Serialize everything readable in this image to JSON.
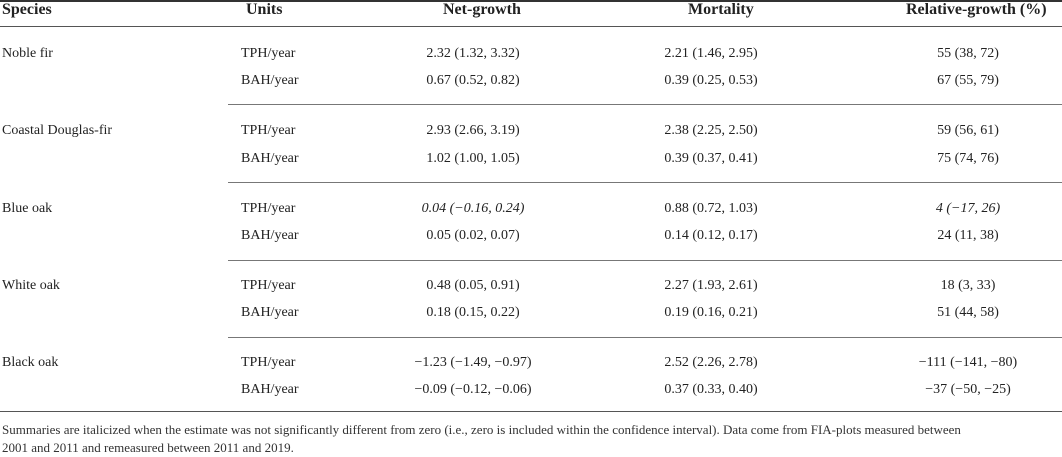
{
  "headers": {
    "species": "Species",
    "units": "Units",
    "net_growth": "Net-growth",
    "mortality": "Mortality",
    "relative_growth": "Relative-growth (%)"
  },
  "groups": [
    {
      "species": "Noble fir",
      "rows": [
        {
          "units": "TPH/year",
          "net_growth": "2.32 (1.32, 3.32)",
          "mortality": "2.21 (1.46, 2.95)",
          "relative_growth": "55 (38, 72)"
        },
        {
          "units": "BAH/year",
          "net_growth": "0.67 (0.52, 0.82)",
          "mortality": "0.39 (0.25, 0.53)",
          "relative_growth": "67 (55, 79)"
        }
      ]
    },
    {
      "species": "Coastal Douglas-fir",
      "rows": [
        {
          "units": "TPH/year",
          "net_growth": "2.93 (2.66, 3.19)",
          "mortality": "2.38 (2.25, 2.50)",
          "relative_growth": "59 (56, 61)"
        },
        {
          "units": "BAH/year",
          "net_growth": "1.02 (1.00, 1.05)",
          "mortality": "0.39 (0.37, 0.41)",
          "relative_growth": "75 (74, 76)"
        }
      ]
    },
    {
      "species": "Blue oak",
      "rows": [
        {
          "units": "TPH/year",
          "net_growth": "0.04 (−0.16, 0.24)",
          "mortality": "0.88 (0.72, 1.03)",
          "relative_growth": "4 (−17, 26)"
        },
        {
          "units": "BAH/year",
          "net_growth": "0.05 (0.02, 0.07)",
          "mortality": "0.14 (0.12, 0.17)",
          "relative_growth": "24 (11, 38)"
        }
      ]
    },
    {
      "species": "White oak",
      "rows": [
        {
          "units": "TPH/year",
          "net_growth": "0.48 (0.05, 0.91)",
          "mortality": "2.27 (1.93, 2.61)",
          "relative_growth": "18 (3, 33)"
        },
        {
          "units": "BAH/year",
          "net_growth": "0.18 (0.15, 0.22)",
          "mortality": "0.19 (0.16, 0.21)",
          "relative_growth": "51 (44, 58)"
        }
      ]
    },
    {
      "species": "Black oak",
      "rows": [
        {
          "units": "TPH/year",
          "net_growth": "−1.23 (−1.49, −0.97)",
          "mortality": "2.52 (2.26, 2.78)",
          "relative_growth": "−111 (−141, −80)"
        },
        {
          "units": "BAH/year",
          "net_growth": "−0.09 (−0.12, −0.06)",
          "mortality": "0.37 (0.33, 0.40)",
          "relative_growth": "−37 (−50, −25)"
        }
      ]
    }
  ],
  "footnote": {
    "line1": "Summaries are italicized when the estimate was not significantly different from zero (i.e., zero is included within the confidence interval). Data come from FIA-plots measured between",
    "line2": "2001 and 2011 and remeasured between 2011 and 2019."
  }
}
